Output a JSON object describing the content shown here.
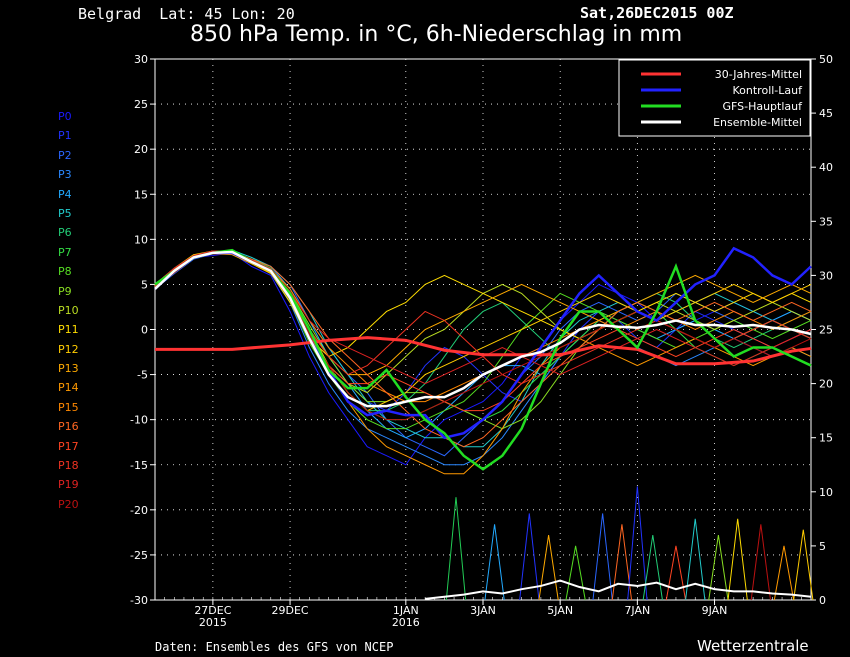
{
  "header": {
    "location": "Belgrad  Lat: 45 Lon: 20",
    "date": "Sat,26DEC2015 00Z",
    "title": "850 hPa Temp. in °C, 6h-Niederschlag in mm"
  },
  "footer": {
    "source": "Daten: Ensembles des GFS von NCEP",
    "brand": "Wetterzentrale"
  },
  "members": [
    {
      "label": "P0",
      "color": "#1a1aff"
    },
    {
      "label": "P1",
      "color": "#2233ff"
    },
    {
      "label": "P2",
      "color": "#2a66ff"
    },
    {
      "label": "P3",
      "color": "#2a88ff"
    },
    {
      "label": "P4",
      "color": "#22aaff"
    },
    {
      "label": "P5",
      "color": "#22cccc"
    },
    {
      "label": "P6",
      "color": "#22cc77"
    },
    {
      "label": "P7",
      "color": "#33dd44"
    },
    {
      "label": "P8",
      "color": "#55dd22"
    },
    {
      "label": "P9",
      "color": "#88dd22"
    },
    {
      "label": "P10",
      "color": "#bbdd22"
    },
    {
      "label": "P11",
      "color": "#ffdd00"
    },
    {
      "label": "P12",
      "color": "#ffcc00"
    },
    {
      "label": "P13",
      "color": "#ffaa00"
    },
    {
      "label": "P14",
      "color": "#ff9900"
    },
    {
      "label": "P15",
      "color": "#ff8800"
    },
    {
      "label": "P16",
      "color": "#ff6622"
    },
    {
      "label": "P17",
      "color": "#ff4422"
    },
    {
      "label": "P18",
      "color": "#ee3322"
    },
    {
      "label": "P19",
      "color": "#dd2222"
    },
    {
      "label": "P20",
      "color": "#bb1111"
    }
  ],
  "chart_data": {
    "type": "line",
    "title": "850 hPa Temp. in °C, 6h-Niederschlag in mm",
    "x_unit": "days",
    "xlim": [
      -0.5,
      16.5
    ],
    "ylim": [
      -30,
      30
    ],
    "ylim_right": [
      0,
      50
    ],
    "y_ticks": [
      -30,
      -25,
      -20,
      -15,
      -10,
      -5,
      0,
      5,
      10,
      15,
      20,
      25,
      30
    ],
    "y_ticks_right": [
      0,
      5,
      10,
      15,
      20,
      25,
      30,
      35,
      40,
      45,
      50
    ],
    "x_ticks": [
      {
        "x": 1,
        "label": "27DEC",
        "sub": "2015"
      },
      {
        "x": 3,
        "label": "29DEC",
        "sub": ""
      },
      {
        "x": 6,
        "label": "1JAN",
        "sub": "2016"
      },
      {
        "x": 8,
        "label": "3JAN",
        "sub": ""
      },
      {
        "x": 10,
        "label": "5JAN",
        "sub": ""
      },
      {
        "x": 12,
        "label": "7JAN",
        "sub": ""
      },
      {
        "x": 14,
        "label": "9JAN",
        "sub": ""
      }
    ],
    "grid": true,
    "legend_position": "top-right",
    "series": [
      {
        "name": "30-Jahres-Mittel",
        "color": "#ff3333",
        "x": [
          -0.5,
          1.5,
          3,
          4,
          5,
          6,
          7,
          8,
          9,
          10,
          11,
          12,
          13,
          14,
          15,
          16,
          16.5
        ],
        "y": [
          -2.2,
          -2.2,
          -1.7,
          -1.2,
          -0.9,
          -1.2,
          -2.3,
          -2.8,
          -2.8,
          -2.8,
          -1.8,
          -2.2,
          -3.8,
          -3.8,
          -3.5,
          -2.4,
          -2.1
        ]
      },
      {
        "name": "Kontroll-Lauf",
        "color": "#2222ff",
        "x": [
          -0.5,
          0,
          0.5,
          1,
          1.5,
          2,
          2.5,
          3,
          3.5,
          4,
          4.5,
          5,
          5.5,
          6,
          6.5,
          7,
          7.5,
          8,
          8.5,
          9,
          9.5,
          10,
          10.5,
          11,
          11.5,
          12,
          12.5,
          13,
          13.5,
          14,
          14.5,
          15,
          15.5,
          16,
          16.5
        ],
        "y": [
          4.5,
          6.5,
          8,
          8.5,
          8.5,
          7.5,
          6.5,
          3.5,
          -1,
          -4.5,
          -8,
          -9.5,
          -9,
          -9.5,
          -9.5,
          -12,
          -11.5,
          -10,
          -8,
          -5,
          -2,
          1,
          4,
          6,
          4,
          2,
          1,
          3,
          5,
          6,
          9,
          8,
          6,
          5,
          7
        ]
      },
      {
        "name": "GFS-Hauptlauf",
        "color": "#22dd22",
        "x": [
          -0.5,
          0,
          0.5,
          1,
          1.5,
          2,
          2.5,
          3,
          3.5,
          4,
          4.5,
          5,
          5.5,
          6,
          6.5,
          7,
          7.5,
          8,
          8.5,
          9,
          9.5,
          10,
          10.5,
          11,
          11.5,
          12,
          12.5,
          13,
          13.5,
          14,
          14.5,
          15,
          15.5,
          16,
          16.5
        ],
        "y": [
          5,
          6.5,
          8,
          8.5,
          8.8,
          7.5,
          6.5,
          4,
          0,
          -4.5,
          -6.5,
          -6.5,
          -4.5,
          -7.5,
          -10,
          -11.5,
          -14,
          -15.5,
          -14,
          -11,
          -6,
          -1,
          2,
          2,
          0,
          -2,
          2,
          7,
          1,
          -1,
          -3,
          -2,
          -2,
          -3,
          -4
        ]
      },
      {
        "name": "Ensemble-Mittel",
        "color": "#ffffff",
        "x": [
          -0.5,
          0,
          0.5,
          1,
          1.5,
          2,
          2.5,
          3,
          3.5,
          4,
          4.5,
          5,
          5.5,
          6,
          6.5,
          7,
          7.5,
          8,
          8.5,
          9,
          9.5,
          10,
          10.5,
          11,
          11.5,
          12,
          12.5,
          13,
          13.5,
          14,
          14.5,
          15,
          15.5,
          16,
          16.5
        ],
        "y": [
          4.5,
          6.5,
          8,
          8.5,
          8.6,
          7.5,
          6.5,
          3.5,
          -1,
          -5,
          -7.5,
          -8.5,
          -8.5,
          -8,
          -7.5,
          -7.5,
          -6.5,
          -5,
          -4,
          -3,
          -2.5,
          -1.5,
          0,
          0.5,
          0.3,
          0.2,
          0.5,
          1,
          0.5,
          0.5,
          0.3,
          0.5,
          0.2,
          0,
          -0.5
        ]
      }
    ],
    "members_series": [
      [
        5,
        6.5,
        8,
        8.2,
        8.5,
        7,
        6,
        2,
        -3,
        -7,
        -10,
        -13,
        -14,
        -15,
        -12,
        -10,
        -9,
        -8,
        -6,
        -3,
        -2,
        1,
        3,
        5,
        4,
        3,
        1,
        0,
        1,
        2,
        3,
        2,
        1,
        0,
        -1
      ],
      [
        5,
        6.8,
        8.2,
        8.6,
        8.4,
        7.6,
        6.8,
        4,
        0,
        -3,
        -6,
        -8,
        -9,
        -7,
        -4,
        -2,
        -3,
        -5,
        -7,
        -8,
        -6,
        -3,
        0,
        2,
        1,
        -1,
        -2,
        0,
        2,
        1,
        0,
        -1,
        -2,
        -1,
        0
      ],
      [
        4.5,
        6.2,
        7.8,
        8.4,
        8.6,
        7.8,
        7,
        5,
        1,
        -2,
        -5,
        -7,
        -10,
        -12,
        -13,
        -14,
        -12,
        -10,
        -8,
        -5,
        -3,
        0,
        2,
        3,
        2,
        1,
        2,
        4,
        3,
        2,
        1,
        0,
        1,
        2,
        1
      ],
      [
        5,
        6.6,
        8,
        8.5,
        8.6,
        7.5,
        6.2,
        3,
        -2,
        -6,
        -9,
        -11,
        -12,
        -13,
        -14,
        -15,
        -15,
        -14,
        -12,
        -9,
        -6,
        -3,
        -1,
        1,
        0,
        -2,
        -3,
        -4,
        -3,
        -2,
        -1,
        -2,
        -3,
        -2,
        -3
      ],
      [
        4.8,
        6.4,
        8.1,
        8.7,
        8.5,
        7.8,
        7,
        4.5,
        1,
        -3,
        -6,
        -9,
        -11,
        -12,
        -11,
        -9,
        -7,
        -5,
        -4,
        -4,
        -5,
        -3,
        -1,
        0,
        1,
        0,
        -1,
        0,
        1,
        0,
        -1,
        0,
        1,
        2,
        1
      ],
      [
        5,
        6.5,
        8,
        8.6,
        8.8,
        8,
        7,
        5,
        2,
        -2,
        -5,
        -8,
        -10,
        -11,
        -12,
        -12,
        -13,
        -13,
        -11,
        -8,
        -4,
        -1,
        1,
        2,
        3,
        2,
        1,
        2,
        3,
        4,
        3,
        2,
        1,
        0,
        -1
      ],
      [
        4.6,
        6.3,
        8,
        8.5,
        8.6,
        7.6,
        6.6,
        3.5,
        -1,
        -4,
        -7,
        -9,
        -9,
        -8,
        -6,
        -3,
        0,
        2,
        3,
        1,
        -1,
        -3,
        -2,
        0,
        2,
        3,
        4,
        3,
        1,
        -1,
        -2,
        -1,
        0,
        1,
        2
      ],
      [
        5,
        6.7,
        8.2,
        8.7,
        8.7,
        7.8,
        6.8,
        4,
        0,
        -4,
        -7,
        -9,
        -10,
        -10,
        -9,
        -8,
        -9,
        -10,
        -9,
        -7,
        -5,
        -3,
        -1,
        1,
        2,
        3,
        2,
        0,
        -2,
        -3,
        -4,
        -3,
        -2,
        -3,
        -4
      ],
      [
        4.7,
        6.4,
        8,
        8.5,
        8.4,
        7.5,
        6.5,
        3.2,
        -1.5,
        -5,
        -8,
        -10,
        -11,
        -11,
        -10,
        -9,
        -8,
        -6,
        -3,
        0,
        2,
        4,
        3,
        2,
        1,
        0,
        -1,
        -2,
        -1,
        0,
        1,
        0,
        -1,
        0,
        1
      ],
      [
        5,
        6.6,
        8.1,
        8.6,
        8.5,
        7.7,
        6.7,
        4.2,
        0.5,
        -3,
        -6,
        -8,
        -8,
        -7,
        -7,
        -8,
        -9,
        -10,
        -11,
        -10,
        -8,
        -5,
        -2,
        0,
        1,
        2,
        1,
        0,
        -1,
        -2,
        -1,
        0,
        1,
        0,
        -1
      ],
      [
        4.9,
        6.5,
        8,
        8.5,
        8.6,
        7.6,
        6.5,
        3.8,
        0,
        -4,
        -6,
        -7,
        -5,
        -3,
        -1,
        0,
        2,
        4,
        5,
        4,
        2,
        0,
        -1,
        0,
        1,
        2,
        3,
        2,
        1,
        0,
        1,
        2,
        3,
        2,
        1
      ],
      [
        5,
        6.8,
        8.3,
        8.7,
        8.5,
        7.4,
        6.3,
        3,
        -1,
        -3,
        -2,
        0,
        2,
        3,
        5,
        6,
        5,
        4,
        3,
        2,
        1,
        0,
        -1,
        0,
        1,
        2,
        3,
        4,
        3,
        2,
        3,
        4,
        3,
        4,
        3
      ],
      [
        4.8,
        6.5,
        8,
        8.4,
        8.3,
        7.3,
        6.2,
        3.5,
        0,
        -4,
        -7,
        -9,
        -8,
        -7,
        -5,
        -4,
        -3,
        -2,
        -1,
        0,
        1,
        2,
        3,
        4,
        3,
        2,
        1,
        2,
        3,
        4,
        5,
        4,
        3,
        4,
        5
      ],
      [
        5,
        6.6,
        8.2,
        8.6,
        8.6,
        7.6,
        6.6,
        4,
        0,
        -3,
        -5,
        -5,
        -4,
        -2,
        0,
        1,
        2,
        3,
        4,
        5,
        4,
        3,
        2,
        1,
        2,
        3,
        4,
        5,
        6,
        5,
        4,
        3,
        4,
        5,
        4
      ],
      [
        4.7,
        6.4,
        8,
        8.4,
        8.5,
        7.5,
        6.5,
        3.6,
        -0.5,
        -4.5,
        -8,
        -11,
        -13,
        -14,
        -15,
        -16,
        -16,
        -14,
        -11,
        -7,
        -4,
        -2,
        -1,
        -2,
        -3,
        -4,
        -3,
        -2,
        -1,
        -2,
        -3,
        -4,
        -3,
        -2,
        -3
      ],
      [
        5,
        6.7,
        8.1,
        8.6,
        8.7,
        7.7,
        6.7,
        4.5,
        1,
        -2,
        -4,
        -6,
        -7,
        -8,
        -8,
        -7,
        -6,
        -5,
        -4,
        -3,
        -2,
        -1,
        0,
        1,
        0,
        1,
        2,
        1,
        0,
        1,
        2,
        1,
        0,
        1,
        2
      ],
      [
        4.9,
        6.6,
        8.2,
        8.7,
        8.6,
        7.8,
        7,
        5,
        2,
        -1,
        -3,
        -5,
        -7,
        -9,
        -11,
        -12,
        -13,
        -12,
        -10,
        -8,
        -6,
        -4,
        -2,
        0,
        2,
        3,
        2,
        1,
        2,
        3,
        2,
        1,
        2,
        3,
        2
      ],
      [
        5,
        6.5,
        8,
        8.5,
        8.4,
        7.4,
        6.4,
        3.3,
        -1,
        -4,
        -6,
        -6,
        -5,
        -6,
        -7,
        -8,
        -9,
        -9,
        -8,
        -6,
        -4,
        -3,
        -2,
        -1,
        0,
        -1,
        -2,
        -3,
        -2,
        -1,
        0,
        -1,
        -2,
        -1,
        0
      ],
      [
        4.8,
        6.6,
        8.1,
        8.6,
        8.5,
        7.6,
        6.6,
        4,
        0,
        -3,
        -5,
        -4,
        -2,
        0,
        2,
        1,
        -1,
        -3,
        -5,
        -6,
        -5,
        -4,
        -3,
        -2,
        -1,
        0,
        1,
        0,
        -1,
        -2,
        -1,
        0,
        1,
        0,
        -1
      ],
      [
        5,
        6.8,
        8.2,
        8.7,
        8.6,
        7.7,
        6.7,
        4.2,
        1,
        -1,
        -2,
        -3,
        -4,
        -5,
        -6,
        -5,
        -4,
        -3,
        -2,
        -3,
        -4,
        -5,
        -4,
        -3,
        -2,
        -1,
        0,
        -1,
        -2,
        -3,
        -4,
        -3,
        -2,
        -1,
        0
      ],
      [
        4.6,
        6.3,
        7.9,
        8.4,
        8.4,
        7.4,
        6.4,
        3.4,
        -0.5,
        -4,
        -7,
        -9,
        -10,
        -10,
        -9,
        -8,
        -7,
        -6,
        -5,
        -4,
        -3,
        -2,
        -1,
        0,
        1,
        2,
        1,
        0,
        -1,
        -2,
        -1,
        -2,
        -3,
        -2,
        -1
      ]
    ],
    "precip_spikes": [
      {
        "x": 7.3,
        "mm": 9.5,
        "color": "#22cc55"
      },
      {
        "x": 8.3,
        "mm": 7,
        "color": "#22aaff"
      },
      {
        "x": 9.2,
        "mm": 8,
        "color": "#2233ff"
      },
      {
        "x": 9.7,
        "mm": 6,
        "color": "#ffaa00"
      },
      {
        "x": 10.4,
        "mm": 5,
        "color": "#55dd22"
      },
      {
        "x": 11.1,
        "mm": 8,
        "color": "#2a66ff"
      },
      {
        "x": 11.6,
        "mm": 7,
        "color": "#ff6622"
      },
      {
        "x": 12,
        "mm": 10.5,
        "color": "#2233ff"
      },
      {
        "x": 12.4,
        "mm": 6,
        "color": "#22cc77"
      },
      {
        "x": 13,
        "mm": 5,
        "color": "#ff4422"
      },
      {
        "x": 13.5,
        "mm": 7.5,
        "color": "#22cccc"
      },
      {
        "x": 14.1,
        "mm": 6,
        "color": "#88dd22"
      },
      {
        "x": 14.6,
        "mm": 7.5,
        "color": "#ffdd00"
      },
      {
        "x": 15.2,
        "mm": 7,
        "color": "#bb1111"
      },
      {
        "x": 15.8,
        "mm": 5,
        "color": "#ff9900"
      },
      {
        "x": 16.3,
        "mm": 6.5,
        "color": "#ffcc00"
      }
    ],
    "precip_mean": {
      "color": "#ffffff",
      "x": [
        6.5,
        7,
        7.5,
        8,
        8.5,
        9,
        9.5,
        10,
        10.5,
        11,
        11.5,
        12,
        12.5,
        13,
        13.5,
        14,
        14.5,
        15,
        15.5,
        16,
        16.5
      ],
      "mm": [
        0.1,
        0.3,
        0.5,
        0.8,
        0.6,
        1,
        1.3,
        1.8,
        1.2,
        0.8,
        1.5,
        1.3,
        1.6,
        1,
        1.5,
        1,
        0.8,
        0.8,
        0.6,
        0.5,
        0.3
      ]
    }
  }
}
